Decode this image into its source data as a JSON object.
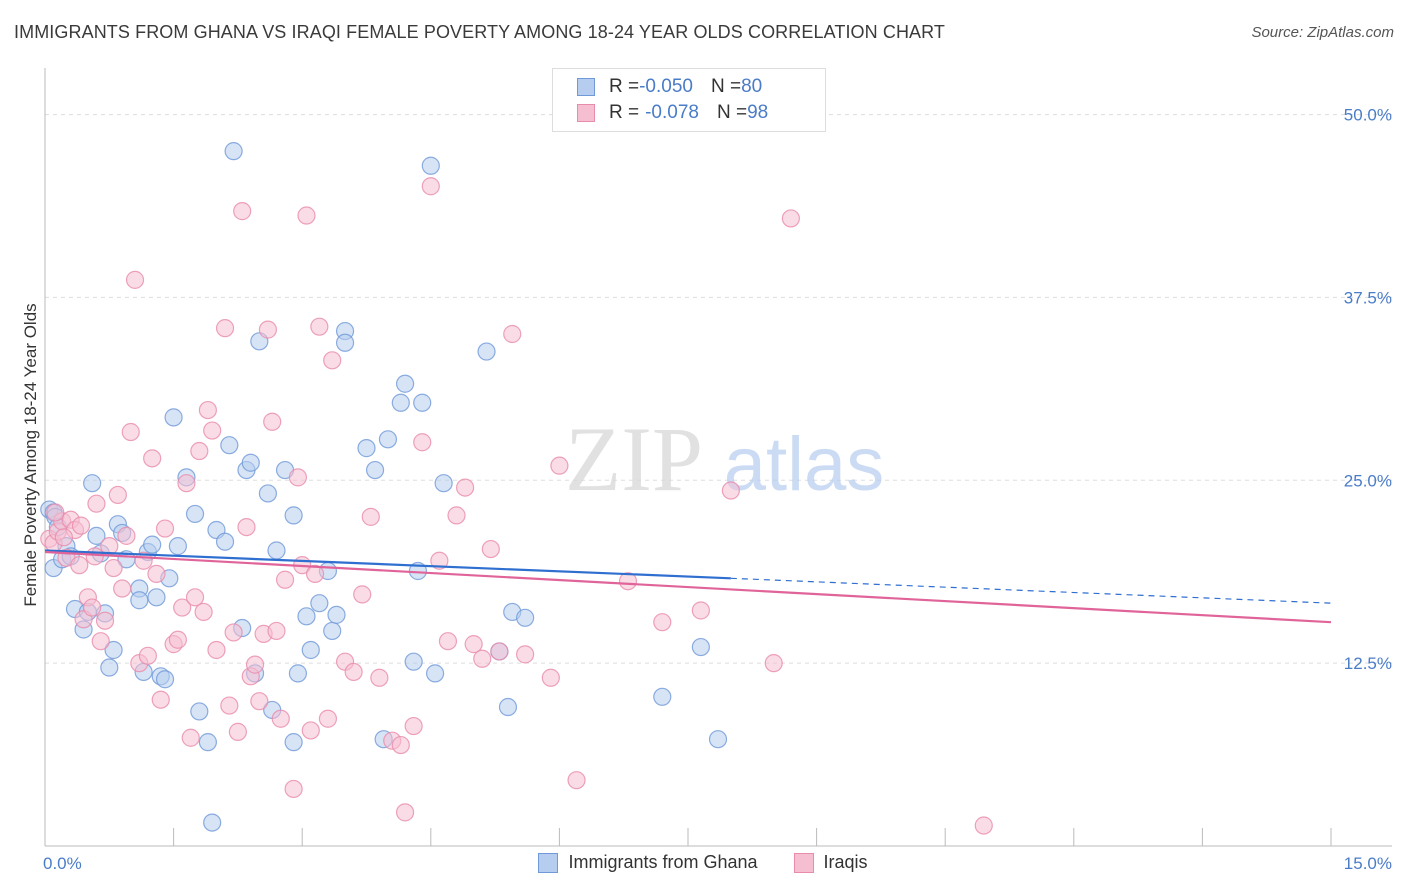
{
  "header": {
    "title": "IMMIGRANTS FROM GHANA VS IRAQI FEMALE POVERTY AMONG 18-24 YEAR OLDS CORRELATION CHART",
    "source": "Source: ZipAtlas.com"
  },
  "colors": {
    "ghana_fill": "#b6cdef",
    "ghana_stroke": "#6f99d8",
    "ghana_line": "#2f6fd0",
    "iraqi_fill": "#f6bfd1",
    "iraqi_stroke": "#e98bab",
    "iraqi_line": "#e0649a",
    "tick_text": "#4a7cc7",
    "grid": "#dddddd"
  },
  "legend_top": {
    "row1": {
      "r_label": "R = ",
      "r_value": "-0.050",
      "n_label": "N = ",
      "n_value": "80"
    },
    "row2": {
      "r_label": "R = ",
      "r_value": "-0.078",
      "n_label": "N = ",
      "n_value": "98"
    }
  },
  "legend_bottom": {
    "ghana": "Immigrants from Ghana",
    "iraqi": "Iraqis"
  },
  "watermark": {
    "zip": "ZIP",
    "atlas": "atlas"
  },
  "chart_data": {
    "type": "scatter",
    "title": "IMMIGRANTS FROM GHANA VS IRAQI FEMALE POVERTY AMONG 18-24 YEAR OLDS CORRELATION CHART",
    "xlabel": "",
    "ylabel": "Female Poverty Among 18-24 Year Olds",
    "xlim": [
      0,
      15
    ],
    "ylim": [
      0,
      52.5
    ],
    "x_tick_labels": [
      "0.0%",
      "15.0%"
    ],
    "y_ticks": [
      12.5,
      25.0,
      37.5,
      50.0
    ],
    "y_tick_labels": [
      "12.5%",
      "25.0%",
      "37.5%",
      "50.0%"
    ],
    "grid": true,
    "series": [
      {
        "name": "Immigrants from Ghana",
        "r": -0.05,
        "n": 80,
        "trend": {
          "x0": 0,
          "y0": 20.2,
          "x1": 8.0,
          "y1": 18.3,
          "dashed_to_x": 15.0,
          "dashed_to_y": 16.6
        },
        "points": [
          [
            0.05,
            23.0
          ],
          [
            0.1,
            22.8
          ],
          [
            0.12,
            22.5
          ],
          [
            0.1,
            19.0
          ],
          [
            0.15,
            21.8
          ],
          [
            0.2,
            19.6
          ],
          [
            0.25,
            20.5
          ],
          [
            0.3,
            19.8
          ],
          [
            0.35,
            16.2
          ],
          [
            0.45,
            14.8
          ],
          [
            0.5,
            16.0
          ],
          [
            0.55,
            24.8
          ],
          [
            0.6,
            21.2
          ],
          [
            0.7,
            15.9
          ],
          [
            0.75,
            12.2
          ],
          [
            0.8,
            13.4
          ],
          [
            0.85,
            22.0
          ],
          [
            0.9,
            21.4
          ],
          [
            0.95,
            19.6
          ],
          [
            1.1,
            17.6
          ],
          [
            1.15,
            11.9
          ],
          [
            1.2,
            20.1
          ],
          [
            1.25,
            20.6
          ],
          [
            1.3,
            17.0
          ],
          [
            1.35,
            11.6
          ],
          [
            1.4,
            11.4
          ],
          [
            1.45,
            18.3
          ],
          [
            1.5,
            29.3
          ],
          [
            1.55,
            20.5
          ],
          [
            1.65,
            25.2
          ],
          [
            1.75,
            22.7
          ],
          [
            1.8,
            9.2
          ],
          [
            1.9,
            7.1
          ],
          [
            1.95,
            1.6
          ],
          [
            2.0,
            21.6
          ],
          [
            2.1,
            20.8
          ],
          [
            2.15,
            27.4
          ],
          [
            2.2,
            47.5
          ],
          [
            2.3,
            14.9
          ],
          [
            2.35,
            25.7
          ],
          [
            2.4,
            26.2
          ],
          [
            2.45,
            11.8
          ],
          [
            2.5,
            34.5
          ],
          [
            2.6,
            24.1
          ],
          [
            2.65,
            9.3
          ],
          [
            2.7,
            20.2
          ],
          [
            2.8,
            25.7
          ],
          [
            2.9,
            7.1
          ],
          [
            2.95,
            11.8
          ],
          [
            3.05,
            15.7
          ],
          [
            3.1,
            13.4
          ],
          [
            3.2,
            16.6
          ],
          [
            3.3,
            18.8
          ],
          [
            3.35,
            14.7
          ],
          [
            3.4,
            15.8
          ],
          [
            3.5,
            35.2
          ],
          [
            3.5,
            34.4
          ],
          [
            3.75,
            27.2
          ],
          [
            3.85,
            25.7
          ],
          [
            3.95,
            7.3
          ],
          [
            4.0,
            27.8
          ],
          [
            4.15,
            30.3
          ],
          [
            4.2,
            31.6
          ],
          [
            4.3,
            12.6
          ],
          [
            4.35,
            18.8
          ],
          [
            4.4,
            30.3
          ],
          [
            4.5,
            46.5
          ],
          [
            4.55,
            11.8
          ],
          [
            4.65,
            24.8
          ],
          [
            5.15,
            33.8
          ],
          [
            5.3,
            13.3
          ],
          [
            5.4,
            9.5
          ],
          [
            5.45,
            16.0
          ],
          [
            5.6,
            15.6
          ],
          [
            7.2,
            10.2
          ],
          [
            7.65,
            13.6
          ],
          [
            7.85,
            7.3
          ],
          [
            1.1,
            16.8
          ],
          [
            0.65,
            20.0
          ],
          [
            2.9,
            22.6
          ]
        ]
      },
      {
        "name": "Iraqis",
        "r": -0.078,
        "n": 98,
        "trend": {
          "x0": 0,
          "y0": 20.1,
          "x1": 15.0,
          "y1": 15.3
        },
        "points": [
          [
            0.05,
            21.0
          ],
          [
            0.1,
            20.7
          ],
          [
            0.15,
            21.5
          ],
          [
            0.2,
            22.2
          ],
          [
            0.25,
            19.7
          ],
          [
            0.3,
            22.3
          ],
          [
            0.35,
            21.6
          ],
          [
            0.4,
            19.2
          ],
          [
            0.45,
            15.5
          ],
          [
            0.5,
            17.0
          ],
          [
            0.55,
            16.3
          ],
          [
            0.6,
            23.4
          ],
          [
            0.65,
            14.0
          ],
          [
            0.7,
            15.4
          ],
          [
            0.75,
            20.5
          ],
          [
            0.8,
            19.0
          ],
          [
            0.85,
            24.0
          ],
          [
            0.9,
            17.6
          ],
          [
            0.95,
            21.2
          ],
          [
            1.0,
            28.3
          ],
          [
            1.05,
            38.7
          ],
          [
            1.1,
            12.5
          ],
          [
            1.15,
            19.5
          ],
          [
            1.2,
            13.0
          ],
          [
            1.25,
            26.5
          ],
          [
            1.3,
            18.6
          ],
          [
            1.35,
            10.0
          ],
          [
            1.4,
            21.7
          ],
          [
            1.5,
            13.8
          ],
          [
            1.55,
            14.1
          ],
          [
            1.6,
            16.3
          ],
          [
            1.65,
            24.8
          ],
          [
            1.7,
            7.4
          ],
          [
            1.75,
            17.0
          ],
          [
            1.8,
            27.0
          ],
          [
            1.85,
            16.0
          ],
          [
            1.9,
            29.8
          ],
          [
            1.95,
            28.4
          ],
          [
            2.0,
            13.4
          ],
          [
            2.1,
            35.4
          ],
          [
            2.15,
            9.6
          ],
          [
            2.2,
            14.6
          ],
          [
            2.25,
            7.8
          ],
          [
            2.3,
            43.4
          ],
          [
            2.35,
            21.8
          ],
          [
            2.4,
            11.6
          ],
          [
            2.45,
            12.4
          ],
          [
            2.5,
            9.9
          ],
          [
            2.55,
            14.5
          ],
          [
            2.6,
            35.3
          ],
          [
            2.65,
            29.0
          ],
          [
            2.7,
            14.7
          ],
          [
            2.75,
            8.7
          ],
          [
            2.8,
            18.2
          ],
          [
            2.9,
            3.9
          ],
          [
            2.95,
            25.2
          ],
          [
            3.0,
            19.2
          ],
          [
            3.05,
            43.1
          ],
          [
            3.1,
            7.9
          ],
          [
            3.15,
            18.6
          ],
          [
            3.2,
            35.5
          ],
          [
            3.3,
            8.7
          ],
          [
            3.35,
            33.2
          ],
          [
            3.5,
            12.6
          ],
          [
            3.6,
            11.9
          ],
          [
            3.7,
            17.2
          ],
          [
            3.8,
            22.5
          ],
          [
            3.9,
            11.5
          ],
          [
            4.05,
            7.2
          ],
          [
            4.15,
            6.9
          ],
          [
            4.2,
            2.3
          ],
          [
            4.3,
            8.2
          ],
          [
            4.4,
            27.6
          ],
          [
            4.5,
            45.1
          ],
          [
            4.6,
            19.5
          ],
          [
            4.7,
            14.0
          ],
          [
            4.8,
            22.6
          ],
          [
            4.9,
            24.5
          ],
          [
            5.0,
            13.8
          ],
          [
            5.1,
            12.8
          ],
          [
            5.2,
            20.3
          ],
          [
            5.3,
            13.3
          ],
          [
            5.45,
            35.0
          ],
          [
            5.6,
            13.1
          ],
          [
            5.9,
            11.5
          ],
          [
            6.0,
            26.0
          ],
          [
            6.2,
            4.5
          ],
          [
            6.8,
            18.1
          ],
          [
            7.2,
            15.3
          ],
          [
            7.65,
            16.1
          ],
          [
            8.0,
            24.3
          ],
          [
            8.5,
            12.5
          ],
          [
            8.7,
            42.9
          ],
          [
            10.95,
            1.4
          ],
          [
            0.12,
            22.8
          ],
          [
            0.22,
            21.1
          ],
          [
            0.42,
            21.9
          ],
          [
            0.58,
            19.8
          ]
        ]
      }
    ]
  }
}
